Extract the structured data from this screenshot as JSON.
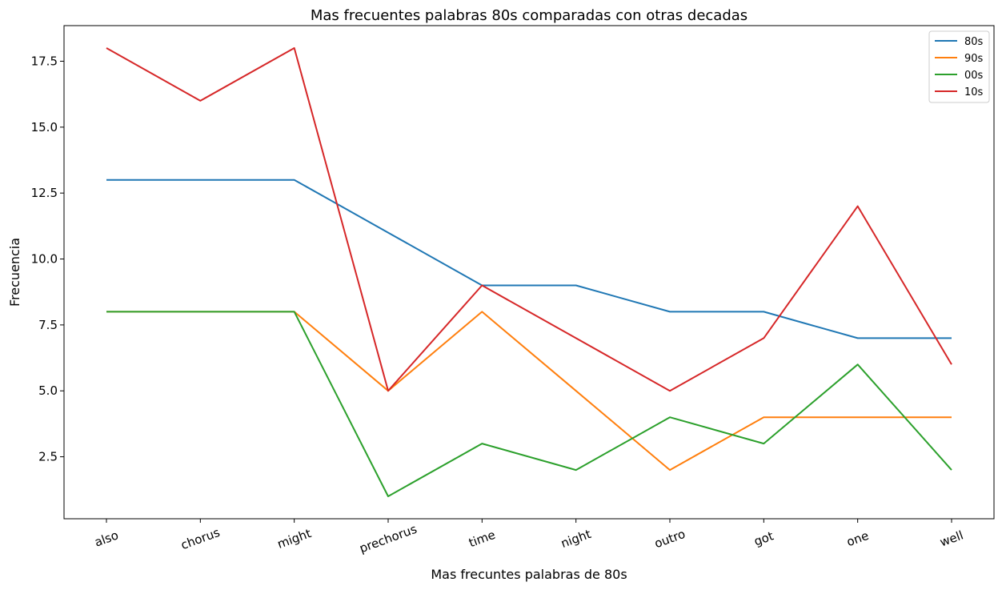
{
  "chart_data": {
    "type": "line",
    "title": "Mas frecuentes palabras 80s comparadas con otras decadas",
    "xlabel": "Mas frecuntes palabras de 80s",
    "ylabel": "Frecuencia",
    "categories": [
      "also",
      "chorus",
      "might",
      "prechorus",
      "time",
      "night",
      "outro",
      "got",
      "one",
      "well"
    ],
    "ylim": [
      0.15,
      18.85
    ],
    "yticks": [
      2.5,
      5.0,
      7.5,
      10.0,
      12.5,
      15.0,
      17.5
    ],
    "ytick_labels": [
      "2.5",
      "5.0",
      "7.5",
      "10.0",
      "12.5",
      "15.0",
      "17.5"
    ],
    "legend_position": "top-right",
    "grid": false,
    "series": [
      {
        "name": "80s",
        "color": "#1f77b4",
        "values": [
          13,
          13,
          13,
          11,
          9,
          9,
          8,
          8,
          7,
          7
        ]
      },
      {
        "name": "90s",
        "color": "#ff7f0e",
        "values": [
          8,
          8,
          8,
          5,
          8,
          5,
          2,
          4,
          4,
          4
        ]
      },
      {
        "name": "00s",
        "color": "#2ca02c",
        "values": [
          8,
          8,
          8,
          1,
          3,
          2,
          4,
          3,
          6,
          2
        ]
      },
      {
        "name": "10s",
        "color": "#d62728",
        "values": [
          18,
          16,
          18,
          5,
          9,
          7,
          5,
          7,
          12,
          6
        ]
      }
    ]
  }
}
